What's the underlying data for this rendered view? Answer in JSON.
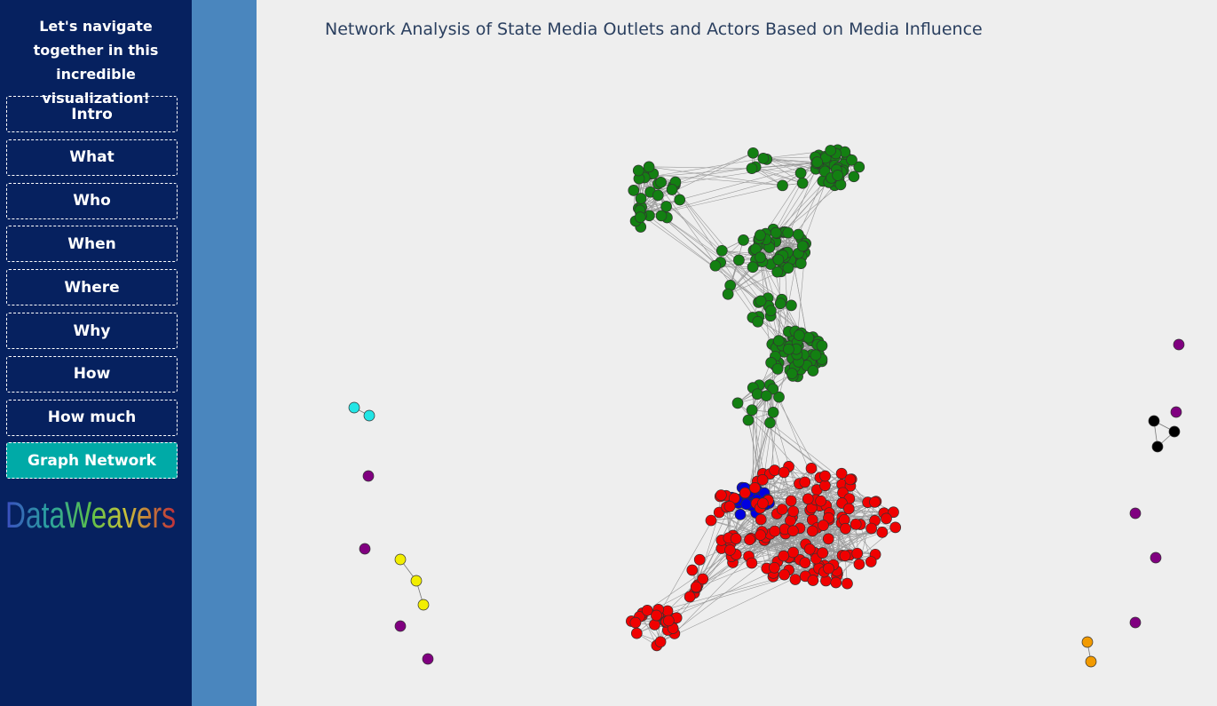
{
  "sidebar": {
    "heading": "Let's navigate together in this incredible visualization!",
    "nav": [
      "Intro",
      "What",
      "Who",
      "When",
      "Where",
      "Why",
      "How",
      "How much",
      "Graph Network"
    ],
    "logo": "DataWeavers"
  },
  "graph": {
    "title": "Network Analysis of State Media Outlets and Actors Based on Media Influence"
  }
}
